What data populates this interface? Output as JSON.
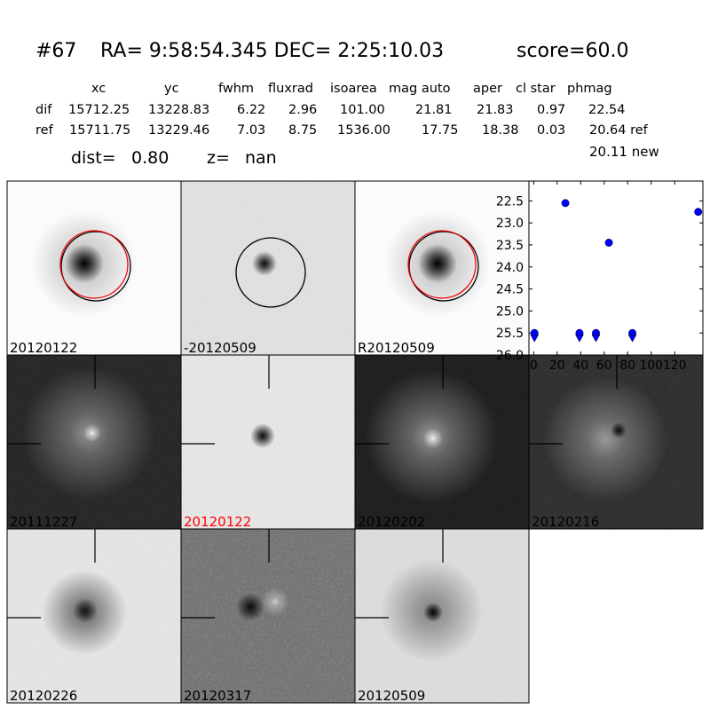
{
  "header": {
    "id": "#67",
    "coords": "RA= 9:58:54.345 DEC= 2:25:10.03",
    "score": "score=60.0"
  },
  "table": {
    "columns": [
      "xc",
      "yc",
      "fwhm",
      "fluxrad",
      "isoarea",
      "mag auto",
      "aper",
      "cl star",
      "phmag"
    ],
    "rows": [
      {
        "label": "dif",
        "cells": [
          "15712.25",
          "13228.83",
          "6.22",
          "2.96",
          "101.00",
          "21.81",
          "21.83",
          "0.97",
          "22.54"
        ]
      },
      {
        "label": "ref",
        "cells": [
          "15711.75",
          "13229.46",
          "7.03",
          "8.75",
          "1536.00",
          "17.75",
          "18.38",
          "0.03",
          "20.64 ref"
        ]
      }
    ],
    "extra": "20.11 new"
  },
  "dist_label": "dist=",
  "dist": "0.80",
  "z_label": "z=",
  "z": "nan",
  "stamps": [
    {
      "label": "20120122"
    },
    {
      "label": "-20120509"
    },
    {
      "label": "R20120509"
    },
    {
      "label": "20111227"
    },
    {
      "label": "20120122",
      "label_color": "#ff0000"
    },
    {
      "label": "20120202"
    },
    {
      "label": "20120216"
    },
    {
      "label": "20120226"
    },
    {
      "label": "20120317"
    },
    {
      "label": "20120509"
    }
  ],
  "chart_data": {
    "type": "scatter",
    "xlim": [
      -4,
      144
    ],
    "ylim": [
      26.0,
      22.05
    ],
    "xticks": [
      0,
      20,
      40,
      60,
      80,
      100,
      120
    ],
    "yticks": [
      22.5,
      23,
      23.5,
      24,
      24.5,
      25,
      25.5,
      26
    ],
    "ytick_labels": [
      "22.5",
      "23.0",
      "23.5",
      "24.0",
      "24.5",
      "25.0",
      "25.5",
      "26.0"
    ],
    "series": [
      {
        "color": "#0000ff",
        "marker": "circle",
        "x": [
          27,
          64,
          140,
          0.7,
          39,
          53,
          84
        ],
        "values": [
          22.55,
          23.45,
          22.75,
          25.5,
          25.5,
          25.5,
          25.5
        ]
      },
      {
        "color": "#0000ff",
        "marker": "triangle-down",
        "x": [
          0.7,
          39,
          53,
          84
        ],
        "values": [
          25.62,
          25.62,
          25.62,
          25.62
        ]
      }
    ]
  }
}
